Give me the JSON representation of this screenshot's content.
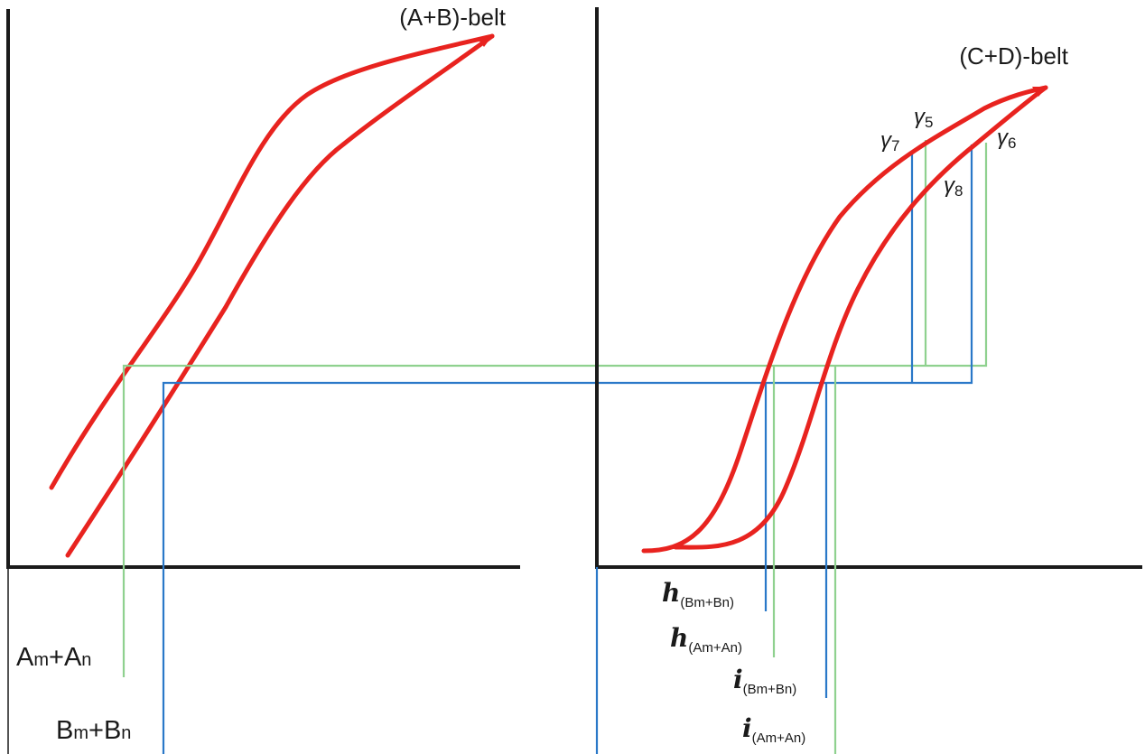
{
  "left_panel": {
    "title": "(A+B)-belt",
    "label_a": {
      "main_1": "A",
      "sub_1": "m",
      "plus": "+",
      "main_2": "A",
      "sub_2": "n"
    },
    "label_b": {
      "main_1": "B",
      "sub_1": "m",
      "plus": "+",
      "main_2": "B",
      "sub_2": "n"
    }
  },
  "right_panel": {
    "title": "(C+D)-belt",
    "gamma_labels": {
      "g5": {
        "sym": "γ",
        "sub": "5"
      },
      "g6": {
        "sym": "γ",
        "sub": "6"
      },
      "g7": {
        "sym": "γ",
        "sub": "7"
      },
      "g8": {
        "sym": "γ",
        "sub": "8"
      }
    },
    "bottom_labels": {
      "h_bm_bn": {
        "sym": "h",
        "sub": "(Bm+Bn)"
      },
      "h_am_an": {
        "sym": "h",
        "sub": "(Am+An)"
      },
      "i_bm_bn": {
        "sym": "i",
        "sub": "(Bm+Bn)"
      },
      "i_am_an": {
        "sym": "i",
        "sub": "(Am+An)"
      }
    }
  },
  "colors": {
    "curve": "#e8231f",
    "guide_green": "#8fd18f",
    "guide_blue": "#2a78c8",
    "axis": "#1a1a1a"
  }
}
